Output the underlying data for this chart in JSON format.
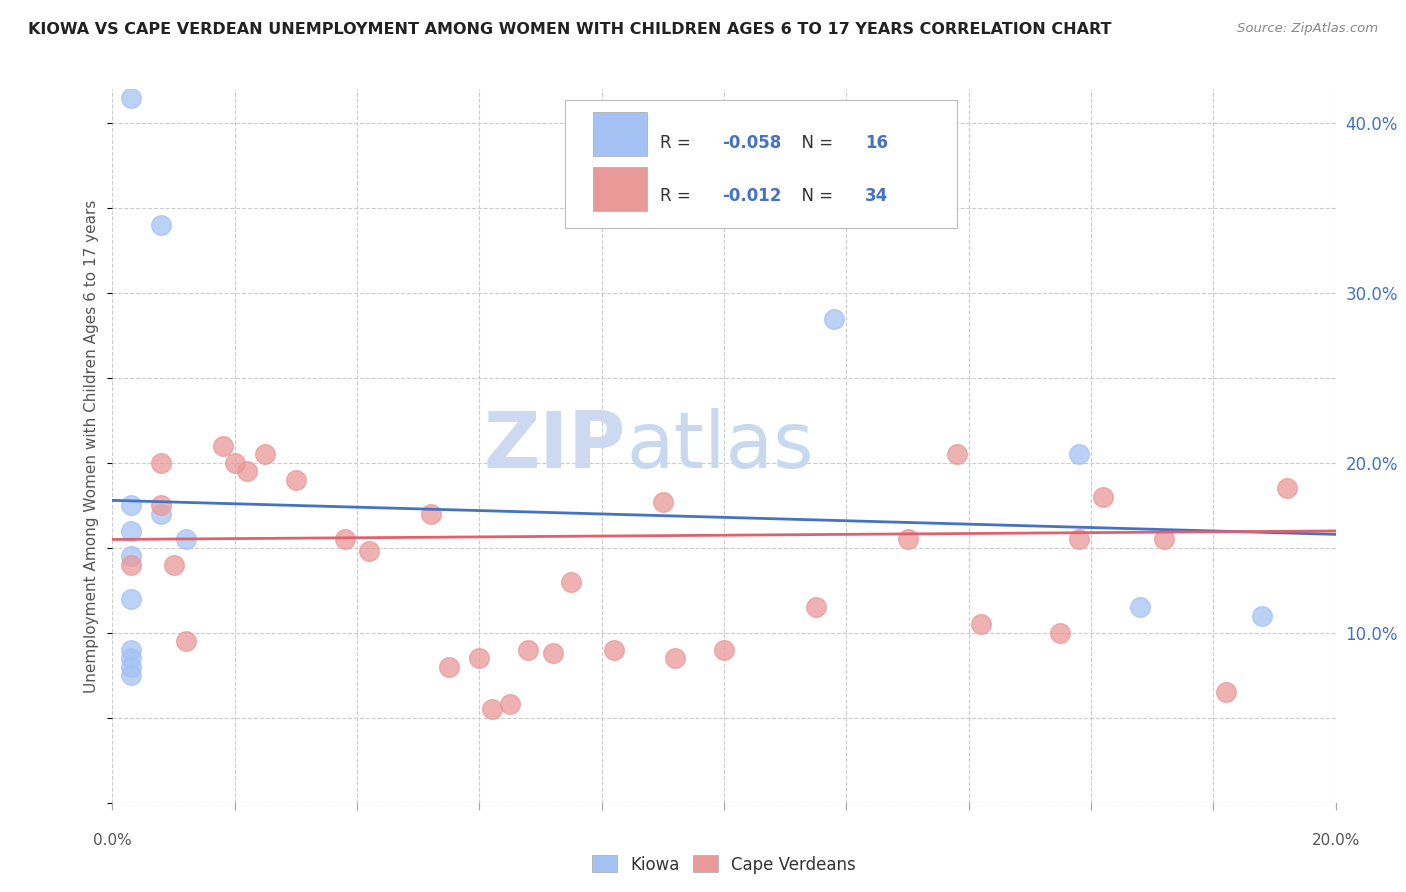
{
  "title": "KIOWA VS CAPE VERDEAN UNEMPLOYMENT AMONG WOMEN WITH CHILDREN AGES 6 TO 17 YEARS CORRELATION CHART",
  "source": "Source: ZipAtlas.com",
  "ylabel": "Unemployment Among Women with Children Ages 6 to 17 years",
  "xlim": [
    0.0,
    0.2
  ],
  "ylim": [
    0.0,
    0.42
  ],
  "kiowa_R": "-0.058",
  "kiowa_N": "16",
  "capeverdean_R": "-0.012",
  "capeverdean_N": "34",
  "kiowa_color": "#a4c2f4",
  "capeverdean_color": "#ea9999",
  "kiowa_scatter_x": [
    0.003,
    0.008,
    0.008,
    0.012,
    0.003,
    0.003,
    0.003,
    0.003,
    0.003,
    0.003,
    0.003,
    0.003,
    0.118,
    0.158,
    0.168,
    0.188
  ],
  "kiowa_scatter_y": [
    0.415,
    0.34,
    0.17,
    0.155,
    0.175,
    0.16,
    0.145,
    0.12,
    0.09,
    0.085,
    0.08,
    0.075,
    0.285,
    0.205,
    0.115,
    0.11
  ],
  "capeverdean_scatter_x": [
    0.003,
    0.008,
    0.008,
    0.01,
    0.012,
    0.018,
    0.02,
    0.022,
    0.025,
    0.03,
    0.038,
    0.042,
    0.052,
    0.055,
    0.06,
    0.062,
    0.065,
    0.068,
    0.072,
    0.075,
    0.082,
    0.09,
    0.092,
    0.1,
    0.115,
    0.13,
    0.138,
    0.142,
    0.155,
    0.158,
    0.162,
    0.172,
    0.182,
    0.192
  ],
  "capeverdean_scatter_y": [
    0.14,
    0.2,
    0.175,
    0.14,
    0.095,
    0.21,
    0.2,
    0.195,
    0.205,
    0.19,
    0.155,
    0.148,
    0.17,
    0.08,
    0.085,
    0.055,
    0.058,
    0.09,
    0.088,
    0.13,
    0.09,
    0.177,
    0.085,
    0.09,
    0.115,
    0.155,
    0.205,
    0.105,
    0.1,
    0.155,
    0.18,
    0.155,
    0.065,
    0.185
  ],
  "kiowa_line_x": [
    0.0,
    0.2
  ],
  "kiowa_line_y_start": 0.178,
  "kiowa_line_y_end": 0.158,
  "capeverdean_line_x": [
    0.0,
    0.2
  ],
  "capeverdean_line_y_start": 0.155,
  "capeverdean_line_y_end": 0.16,
  "watermark_zip": "ZIP",
  "watermark_atlas": "atlas",
  "watermark_color": "#ccd9f0",
  "background_color": "#ffffff",
  "grid_color": "#cccccc",
  "legend_text_color_blue": "#4472c4",
  "legend_text_color_black": "#333333"
}
